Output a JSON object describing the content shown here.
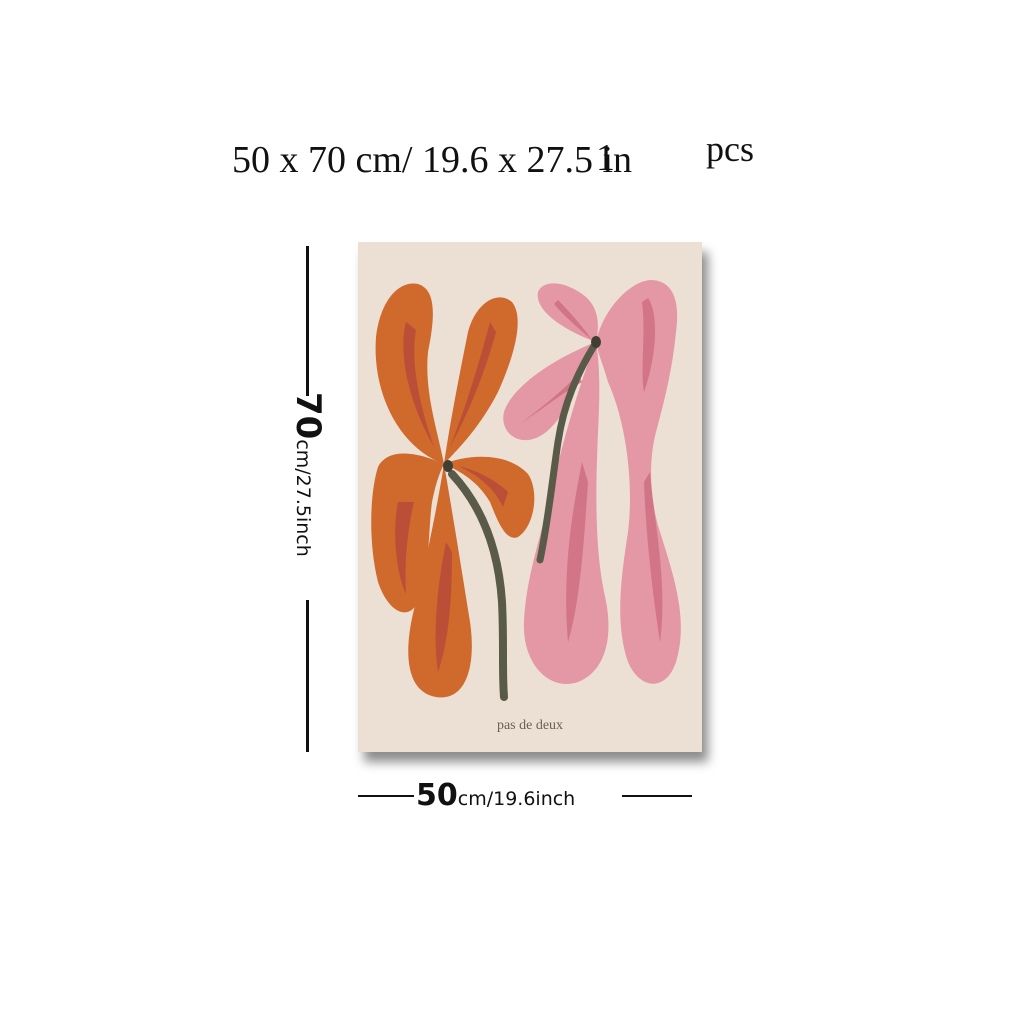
{
  "headline": {
    "size_text": "50 x 70 cm/ 19.6 x 27.5 in",
    "qty_number": "1",
    "qty_unit": "pcs"
  },
  "poster": {
    "caption": "pas de deux",
    "colors": {
      "background": "#ecdfd4",
      "orange_flower": "#cf6a2c",
      "orange_vein": "#b84a3a",
      "pink_flower": "#e497a4",
      "pink_vein": "#cf6f82",
      "stem": "#5a5a48"
    }
  },
  "dimensions": {
    "height_value": "70",
    "height_units": "cm/27.5inch",
    "width_value": "50",
    "width_units": "cm/19.6inch"
  }
}
